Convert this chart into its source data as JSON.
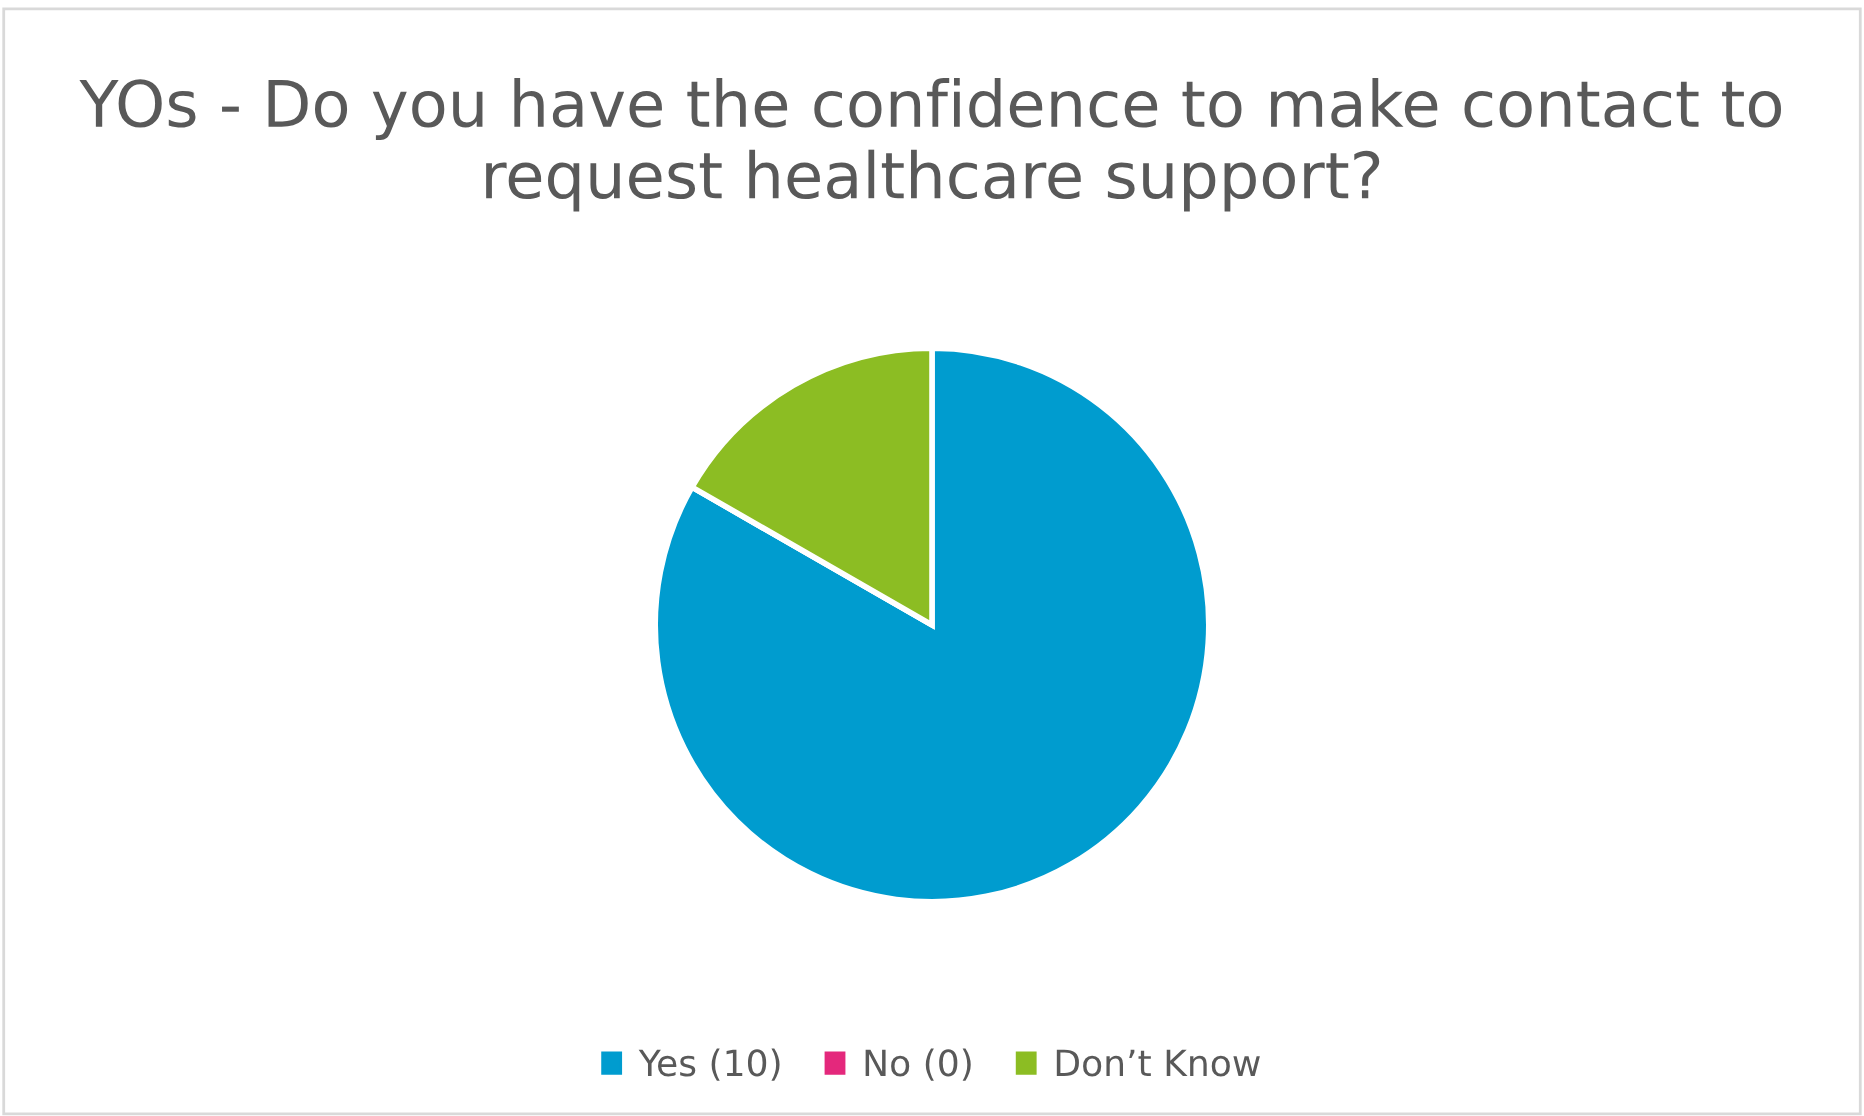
{
  "chart_data": {
    "type": "pie",
    "title": "YOs - Do you have the confidence to make contact to request healthcare support?",
    "categories": [
      "Yes (10)",
      "No (0)",
      "Don’t Know"
    ],
    "values": [
      83.3,
      0,
      16.7
    ],
    "colors": [
      "#009ccf",
      "#e4287c",
      "#8cbd23"
    ],
    "legend": "bottom"
  }
}
